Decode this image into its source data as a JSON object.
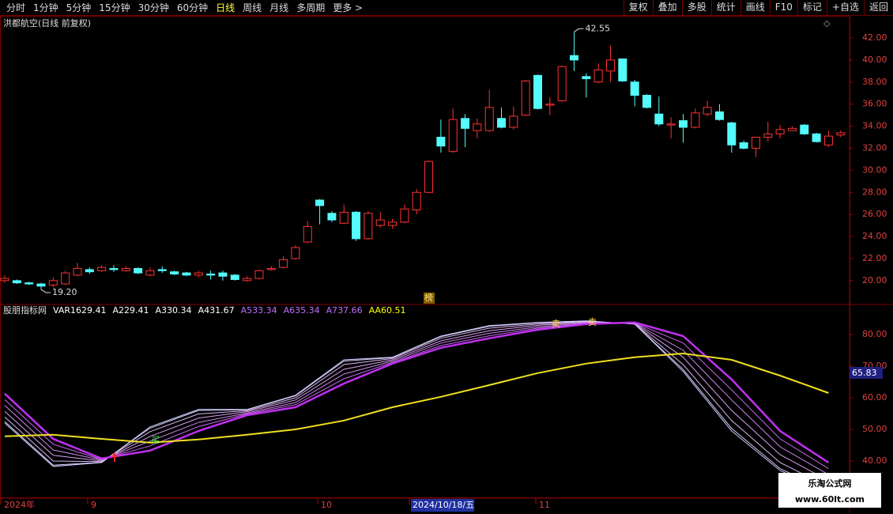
{
  "toolbar": {
    "left": [
      "分时",
      "1分钟",
      "5分钟",
      "15分钟",
      "30分钟",
      "60分钟",
      "日线",
      "周线",
      "月线",
      "多周期",
      "更多 >"
    ],
    "right": [
      "复权",
      "叠加",
      "多股",
      "统计",
      "画线",
      "F10",
      "标记",
      "+自选",
      "返回"
    ]
  },
  "chart_data": [
    {
      "type": "candlestick",
      "title": "洪都航空(日线 前复权)",
      "open": [
        20.0,
        20.0,
        19.8,
        19.7,
        19.6,
        19.7,
        20.5,
        21.0,
        20.9,
        21.1,
        20.9,
        21.1,
        20.5,
        21.0,
        20.8,
        20.7,
        20.5,
        20.6,
        20.7,
        20.5,
        20.0,
        20.2,
        21.0,
        21.2,
        22.0,
        23.5,
        27.3,
        26.1,
        25.2,
        26.2,
        23.8,
        25.0,
        25.0,
        25.3,
        26.4,
        28.0,
        33.0,
        31.7,
        34.7,
        33.6,
        33.6,
        34.7,
        33.9,
        35.0,
        38.6,
        35.9,
        36.3,
        40.4,
        38.5,
        38.0,
        39.0,
        40.1,
        38.0,
        36.8,
        35.1,
        34.1,
        34.5,
        33.9,
        35.1,
        35.3,
        34.3,
        32.5,
        32.0,
        33.0,
        33.3,
        33.6,
        34.1,
        33.3,
        32.3,
        33.2
      ],
      "close": [
        20.2,
        19.8,
        19.7,
        19.5,
        20.0,
        20.7,
        21.1,
        20.8,
        21.2,
        21.0,
        21.1,
        20.7,
        20.9,
        20.9,
        20.6,
        20.5,
        20.7,
        20.5,
        20.4,
        20.1,
        20.2,
        20.9,
        21.1,
        21.9,
        23.0,
        24.9,
        26.8,
        25.5,
        26.2,
        23.8,
        26.1,
        25.5,
        25.3,
        26.5,
        28.0,
        30.8,
        32.2,
        34.6,
        33.8,
        34.2,
        35.7,
        33.9,
        34.9,
        38.1,
        35.6,
        36.0,
        39.4,
        40.0,
        38.3,
        39.1,
        40.0,
        38.1,
        36.8,
        35.7,
        34.2,
        34.2,
        33.9,
        35.2,
        35.7,
        34.6,
        32.3,
        32.0,
        33.0,
        33.3,
        33.7,
        33.8,
        33.3,
        32.6,
        33.1,
        33.4
      ],
      "high": [
        20.5,
        20.1,
        19.9,
        19.8,
        20.3,
        20.9,
        21.6,
        21.2,
        21.4,
        21.4,
        21.3,
        21.2,
        21.2,
        21.3,
        20.9,
        20.8,
        20.9,
        20.9,
        20.9,
        20.6,
        20.4,
        21.0,
        21.3,
        22.2,
        23.2,
        25.4,
        27.4,
        26.3,
        26.9,
        26.3,
        26.3,
        26.2,
        25.6,
        26.9,
        28.3,
        30.9,
        34.6,
        35.6,
        35.1,
        34.7,
        37.3,
        35.7,
        35.8,
        38.2,
        38.7,
        36.6,
        39.5,
        42.55,
        38.8,
        39.7,
        41.3,
        40.1,
        38.2,
        36.9,
        36.7,
        34.8,
        35.1,
        35.6,
        36.3,
        36.0,
        34.4,
        32.7,
        33.0,
        34.4,
        34.1,
        34.0,
        34.2,
        33.4,
        33.6,
        33.6
      ],
      "low": [
        19.8,
        19.7,
        19.6,
        19.2,
        19.4,
        19.6,
        20.4,
        20.6,
        20.8,
        20.8,
        20.8,
        20.6,
        20.4,
        20.7,
        20.5,
        20.4,
        20.3,
        20.1,
        20.0,
        20.0,
        19.9,
        20.1,
        20.9,
        21.1,
        21.9,
        23.4,
        25.1,
        25.3,
        25.1,
        23.6,
        23.7,
        24.8,
        24.7,
        25.2,
        26.0,
        27.9,
        31.6,
        31.6,
        32.1,
        32.9,
        33.5,
        33.8,
        33.7,
        34.9,
        35.5,
        35.0,
        36.2,
        39.0,
        36.6,
        37.9,
        38.0,
        38.0,
        35.8,
        35.6,
        34.0,
        32.9,
        32.5,
        33.8,
        34.9,
        34.5,
        31.6,
        31.9,
        31.2,
        32.6,
        32.9,
        33.6,
        33.2,
        32.5,
        32.1,
        33.0
      ],
      "ylim": [
        17.84,
        43.86
      ],
      "yticks": [
        {
          "value": 20,
          "label": "20.00"
        },
        {
          "value": 22,
          "label": "22.00"
        },
        {
          "value": 24,
          "label": "24.00"
        },
        {
          "value": 26,
          "label": "26.00"
        },
        {
          "value": 28,
          "label": "28.00"
        },
        {
          "value": 30,
          "label": "30.00"
        },
        {
          "value": 32,
          "label": "32.00"
        },
        {
          "value": 34,
          "label": "34.00"
        },
        {
          "value": 36,
          "label": "36.00"
        },
        {
          "value": 38,
          "label": "38.00"
        },
        {
          "value": 40,
          "label": "40.00"
        },
        {
          "value": 42,
          "label": "42.00"
        }
      ],
      "annotations": {
        "high_label": "42.55",
        "low_label": "19.20",
        "marker": "榜"
      },
      "up_color": "#ff3232",
      "down_color": "#54fcfc"
    },
    {
      "type": "line",
      "title": "股朋指标网",
      "x": [
        0,
        4,
        8,
        12,
        16,
        20,
        24,
        28,
        32,
        36,
        40,
        44,
        48,
        52,
        56,
        60,
        64,
        68
      ],
      "ylim": [
        28.25,
        88.75
      ],
      "yticks": [
        {
          "value": 40,
          "label": "40.00"
        },
        {
          "value": 50,
          "label": "50.00"
        },
        {
          "value": 60,
          "label": "60.00"
        },
        {
          "value": 70,
          "label": "70.00"
        },
        {
          "value": 80,
          "label": "80.00"
        }
      ],
      "cursor_label": "65.83",
      "markers": {
        "buy": "买",
        "sell": "卖"
      },
      "series": [
        {
          "name": "VAR16",
          "current": "29.41",
          "color": "#c8d0ff",
          "legend_color": "#ffffff",
          "values": [
            52,
            38.3,
            39.5,
            50.8,
            56.3,
            56.3,
            60.8,
            72,
            72.8,
            79.5,
            82.8,
            83.8,
            84.3,
            83.3,
            68.3,
            49.5,
            37,
            30
          ]
        },
        {
          "name": "A2",
          "current": "29.41",
          "color": "#d8ccf8",
          "legend_color": "#ffffff",
          "values": [
            52.5,
            38.7,
            39.6,
            50.4,
            56,
            56.2,
            60.6,
            71.6,
            72.7,
            79.3,
            82.6,
            83.7,
            84.2,
            83.3,
            68.9,
            50.3,
            37.6,
            30.5
          ]
        },
        {
          "name": "A3",
          "current": "30.34",
          "color": "#dcb8f4",
          "legend_color": "#ffffff",
          "values": [
            53.9,
            40,
            39.8,
            49.3,
            54.9,
            55.9,
            60,
            70.5,
            72.4,
            78.8,
            82,
            83.3,
            84.1,
            83.4,
            70.5,
            52.8,
            39.5,
            31.9
          ]
        },
        {
          "name": "A4",
          "current": "31.67",
          "color": "#d8a0f0",
          "legend_color": "#ffffff",
          "values": [
            55.7,
            41.8,
            40,
            47.8,
            53.6,
            55.6,
            59.3,
            69,
            72,
            78,
            81.2,
            82.9,
            83.9,
            83.5,
            72.8,
            56,
            42,
            33.8
          ]
        },
        {
          "name": "A5",
          "current": "33.34",
          "color": "#d088ee",
          "legend_color": "#c070ff",
          "values": [
            57.6,
            43.5,
            40.3,
            46.3,
            52.2,
            55.2,
            58.5,
            67.5,
            71.6,
            77.3,
            80.4,
            82.4,
            83.7,
            83.6,
            75,
            59.3,
            44.5,
            35.7
          ]
        },
        {
          "name": "A6",
          "current": "35.34",
          "color": "#c868ec",
          "legend_color": "#c070ff",
          "values": [
            59.4,
            45.3,
            40.5,
            44.8,
            50.9,
            54.9,
            57.8,
            66,
            71.2,
            76.5,
            79.6,
            82,
            83.5,
            83.7,
            77.3,
            62.5,
            47,
            37.6
          ]
        },
        {
          "name": "A7",
          "current": "37.66",
          "color": "#c030f0",
          "legend_color": "#c070ff",
          "width": 2.5,
          "values": [
            61.3,
            47,
            40.8,
            43.3,
            49.5,
            54.5,
            57,
            64.5,
            70.8,
            75.8,
            78.8,
            81.5,
            83.3,
            83.8,
            79.5,
            65.8,
            49.5,
            39.5
          ]
        },
        {
          "name": "AA",
          "current": "60.51",
          "color": "#f0e020",
          "legend_color": "#ffff00",
          "width": 2,
          "values": [
            47.8,
            48.3,
            47,
            45.8,
            46.8,
            48.3,
            50,
            52.8,
            57,
            60.3,
            64,
            67.8,
            70.8,
            72.8,
            74,
            72,
            67,
            61.5
          ]
        }
      ]
    }
  ],
  "x_axis": {
    "labels": [
      "2024年",
      "9",
      "10",
      "2024/10/18/五",
      "11"
    ]
  },
  "watermark": {
    "title": "乐淘公式网",
    "url": "www.60lt.com"
  }
}
